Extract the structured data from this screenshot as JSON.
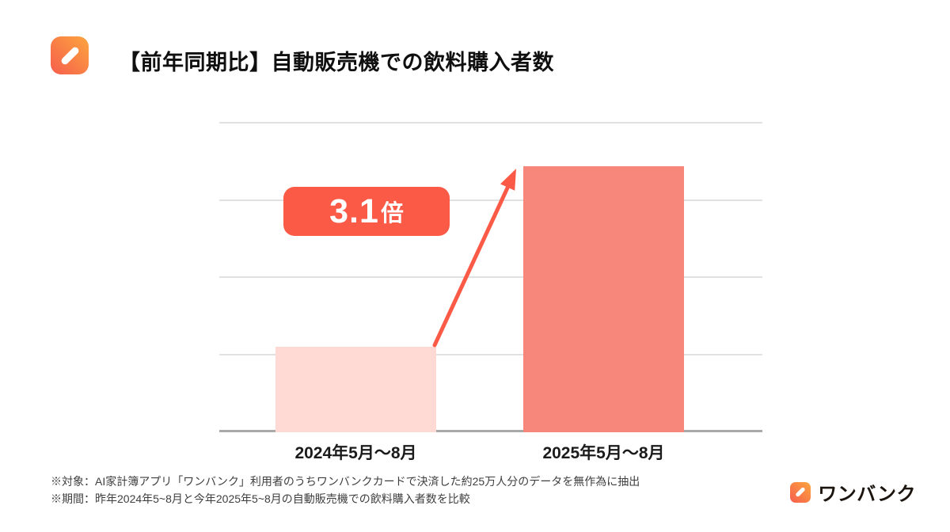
{
  "header": {
    "title": "【前年同期比】自動販売機での飲料購入者数"
  },
  "chart_data": {
    "type": "bar",
    "title": "【前年同期比】自動販売機での飲料購入者数",
    "categories": [
      "2024年5月〜8月",
      "2025年5月〜8月"
    ],
    "values": [
      1,
      3.1
    ],
    "ylim": [
      0,
      4
    ],
    "xlabel": "",
    "ylabel": "",
    "grid": true,
    "gridline_count": 4,
    "legend": "none",
    "bar_colors": [
      "#FFDAD5",
      "#F8877B"
    ],
    "accent_color": "#FB5A47",
    "annotation": {
      "number": "3.1",
      "unit": "倍",
      "text": "3.1倍"
    }
  },
  "footer": {
    "note1": "※対象：AI家計簿アプリ「ワンバンク」利用者のうちワンバンクカードで決済した約25万人分のデータを無作為に抽出",
    "note2": "※期間：昨年2024年5~8月と今年2025年5~8月の自動販売機での飲料購入者数を比較"
  },
  "brand": {
    "name": "ワンバンク",
    "icon_gradient": [
      "#FCA53E",
      "#F65E4D"
    ]
  }
}
